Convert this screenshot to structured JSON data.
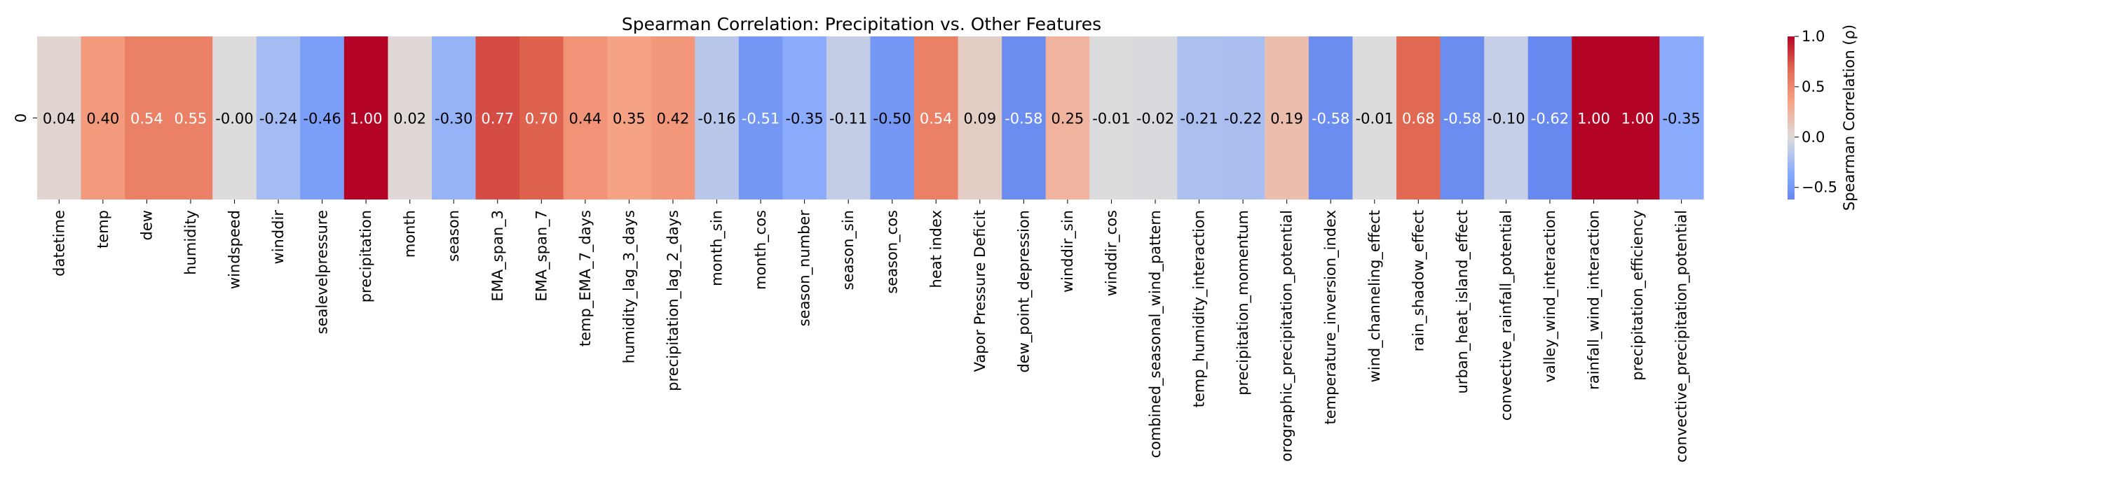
{
  "chart_data": {
    "type": "heatmap",
    "title": "Spearman Correlation: Precipitation vs. Other Features",
    "row_labels": [
      "0"
    ],
    "categories": [
      "datetime",
      "temp",
      "dew",
      "humidity",
      "windspeed",
      "winddir",
      "sealevelpressure",
      "precipitation",
      "month",
      "season",
      "EMA_span_3",
      "EMA_span_7",
      "temp_EMA_7_days",
      "humidity_lag_3_days",
      "precipitation_lag_2_days",
      "month_sin",
      "month_cos",
      "season_number",
      "season_sin",
      "season_cos",
      "heat index",
      "Vapor Pressure Deficit",
      "dew_point_depression",
      "winddir_sin",
      "winddir_cos",
      "combined_seasonal_wind_pattern",
      "temp_humidity_interaction",
      "precipitation_momentum",
      "orographic_precipitation_potential",
      "temperature_inversion_index",
      "wind_channeling_effect",
      "rain_shadow_effect",
      "urban_heat_island_effect",
      "convective_rainfall_potential",
      "valley_wind_interaction",
      "rainfall_wind_interaction",
      "precipitation_efficiency",
      "convective_precipitation_potential"
    ],
    "values": [
      0.04,
      0.4,
      0.54,
      0.55,
      -0.0,
      -0.24,
      -0.46,
      1.0,
      0.02,
      -0.3,
      0.77,
      0.7,
      0.44,
      0.35,
      0.42,
      -0.16,
      -0.51,
      -0.35,
      -0.11,
      -0.5,
      0.54,
      0.09,
      -0.58,
      0.25,
      -0.01,
      -0.02,
      -0.21,
      -0.22,
      0.19,
      -0.58,
      -0.01,
      0.68,
      -0.58,
      -0.1,
      -0.62,
      1.0,
      1.0,
      -0.35
    ],
    "value_labels": [
      "0.04",
      "0.40",
      "0.54",
      "0.55",
      "-0.00",
      "-0.24",
      "-0.46",
      "1.00",
      "0.02",
      "-0.30",
      "0.77",
      "0.70",
      "0.44",
      "0.35",
      "0.42",
      "-0.16",
      "-0.51",
      "-0.35",
      "-0.11",
      "-0.50",
      "0.54",
      "0.09",
      "-0.58",
      "0.25",
      "-0.01",
      "-0.02",
      "-0.21",
      "-0.22",
      "0.19",
      "-0.58",
      "-0.01",
      "0.68",
      "-0.58",
      "-0.10",
      "-0.62",
      "1.00",
      "1.00",
      "-0.35"
    ],
    "colormap": "coolwarm",
    "vmin": -0.62,
    "vmax": 1.0,
    "colorbar": {
      "label": "Spearman Correlation (ρ)",
      "ticks": [
        1.0,
        0.5,
        0.0,
        -0.5
      ],
      "tick_labels": [
        "1.0",
        "0.5",
        "0.0",
        "−0.5"
      ]
    }
  }
}
